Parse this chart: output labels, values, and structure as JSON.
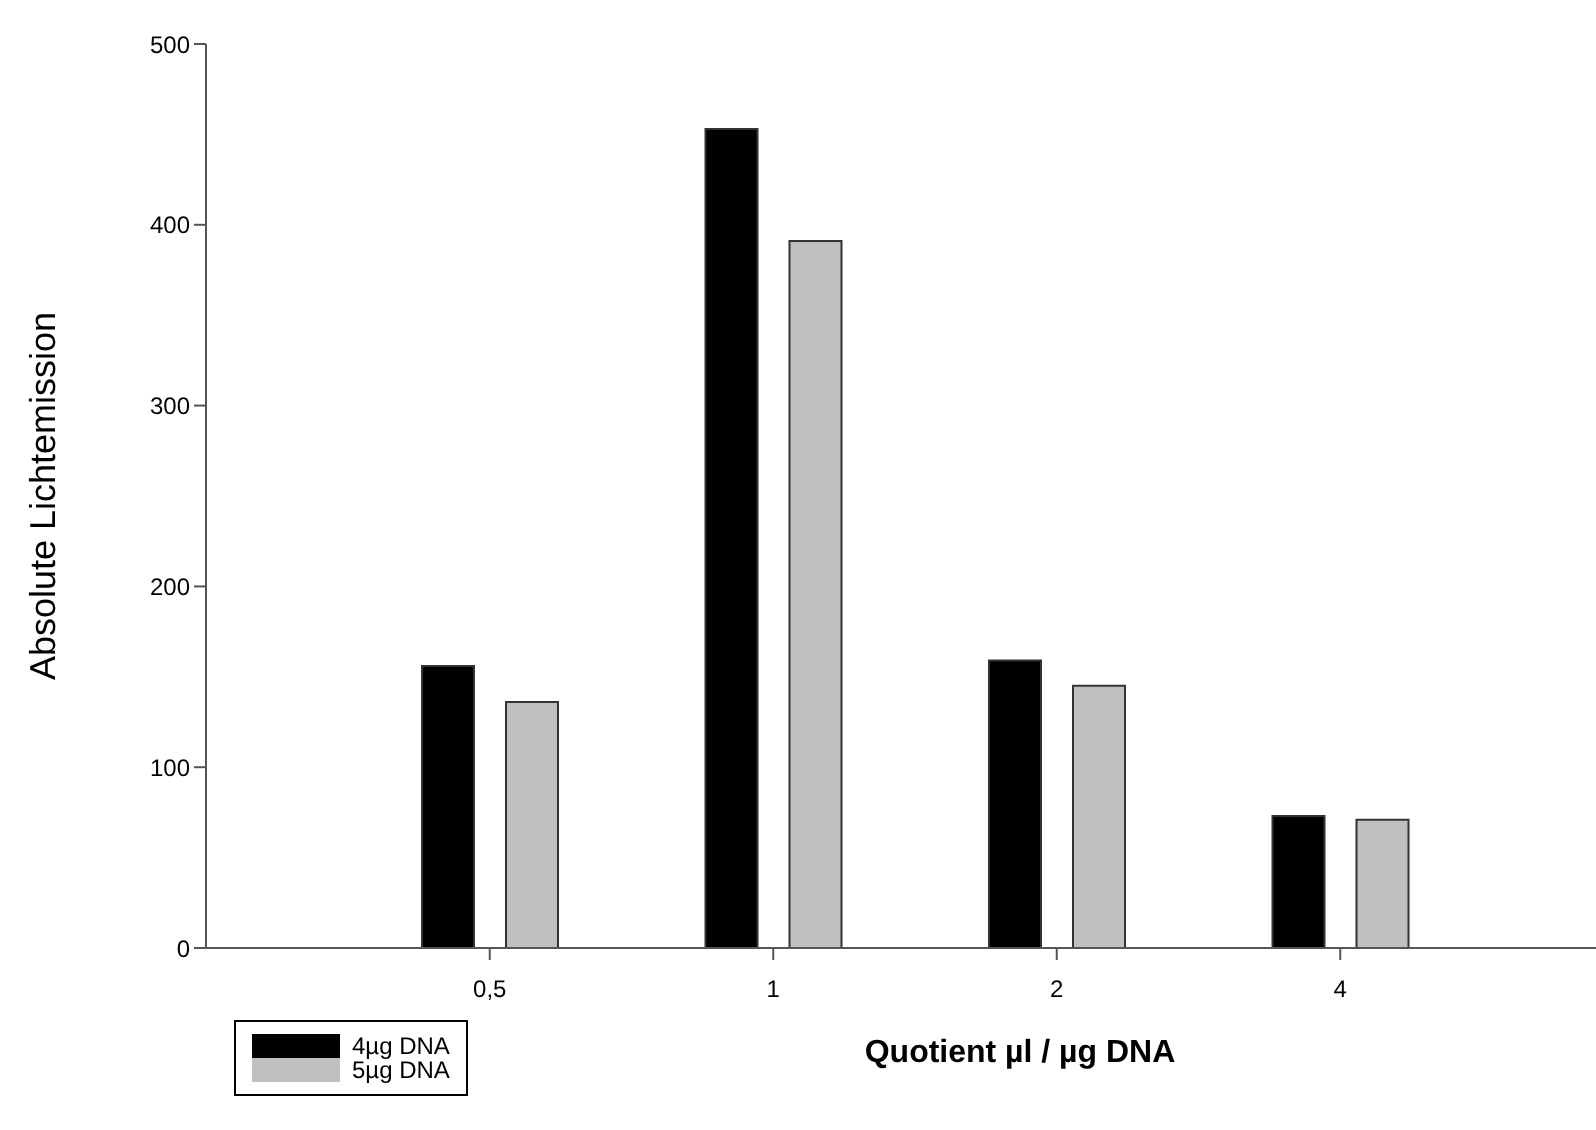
{
  "chart_data": {
    "type": "bar",
    "xlabel": "Quotient µl / µg DNA",
    "ylabel": "Absolute Lichtemission",
    "categories": [
      "0,5",
      "1",
      "2",
      "4"
    ],
    "series": [
      {
        "name": "4µg DNA",
        "color": "#000000",
        "values": [
          156,
          453,
          159,
          73
        ]
      },
      {
        "name": "5µg DNA",
        "color": "#c0c0c0",
        "values": [
          136,
          391,
          145,
          71
        ]
      }
    ],
    "ylim": [
      0,
      500
    ],
    "yticks": [
      0,
      100,
      200,
      300,
      400,
      500
    ],
    "grid": false,
    "legend": "bottom left"
  }
}
